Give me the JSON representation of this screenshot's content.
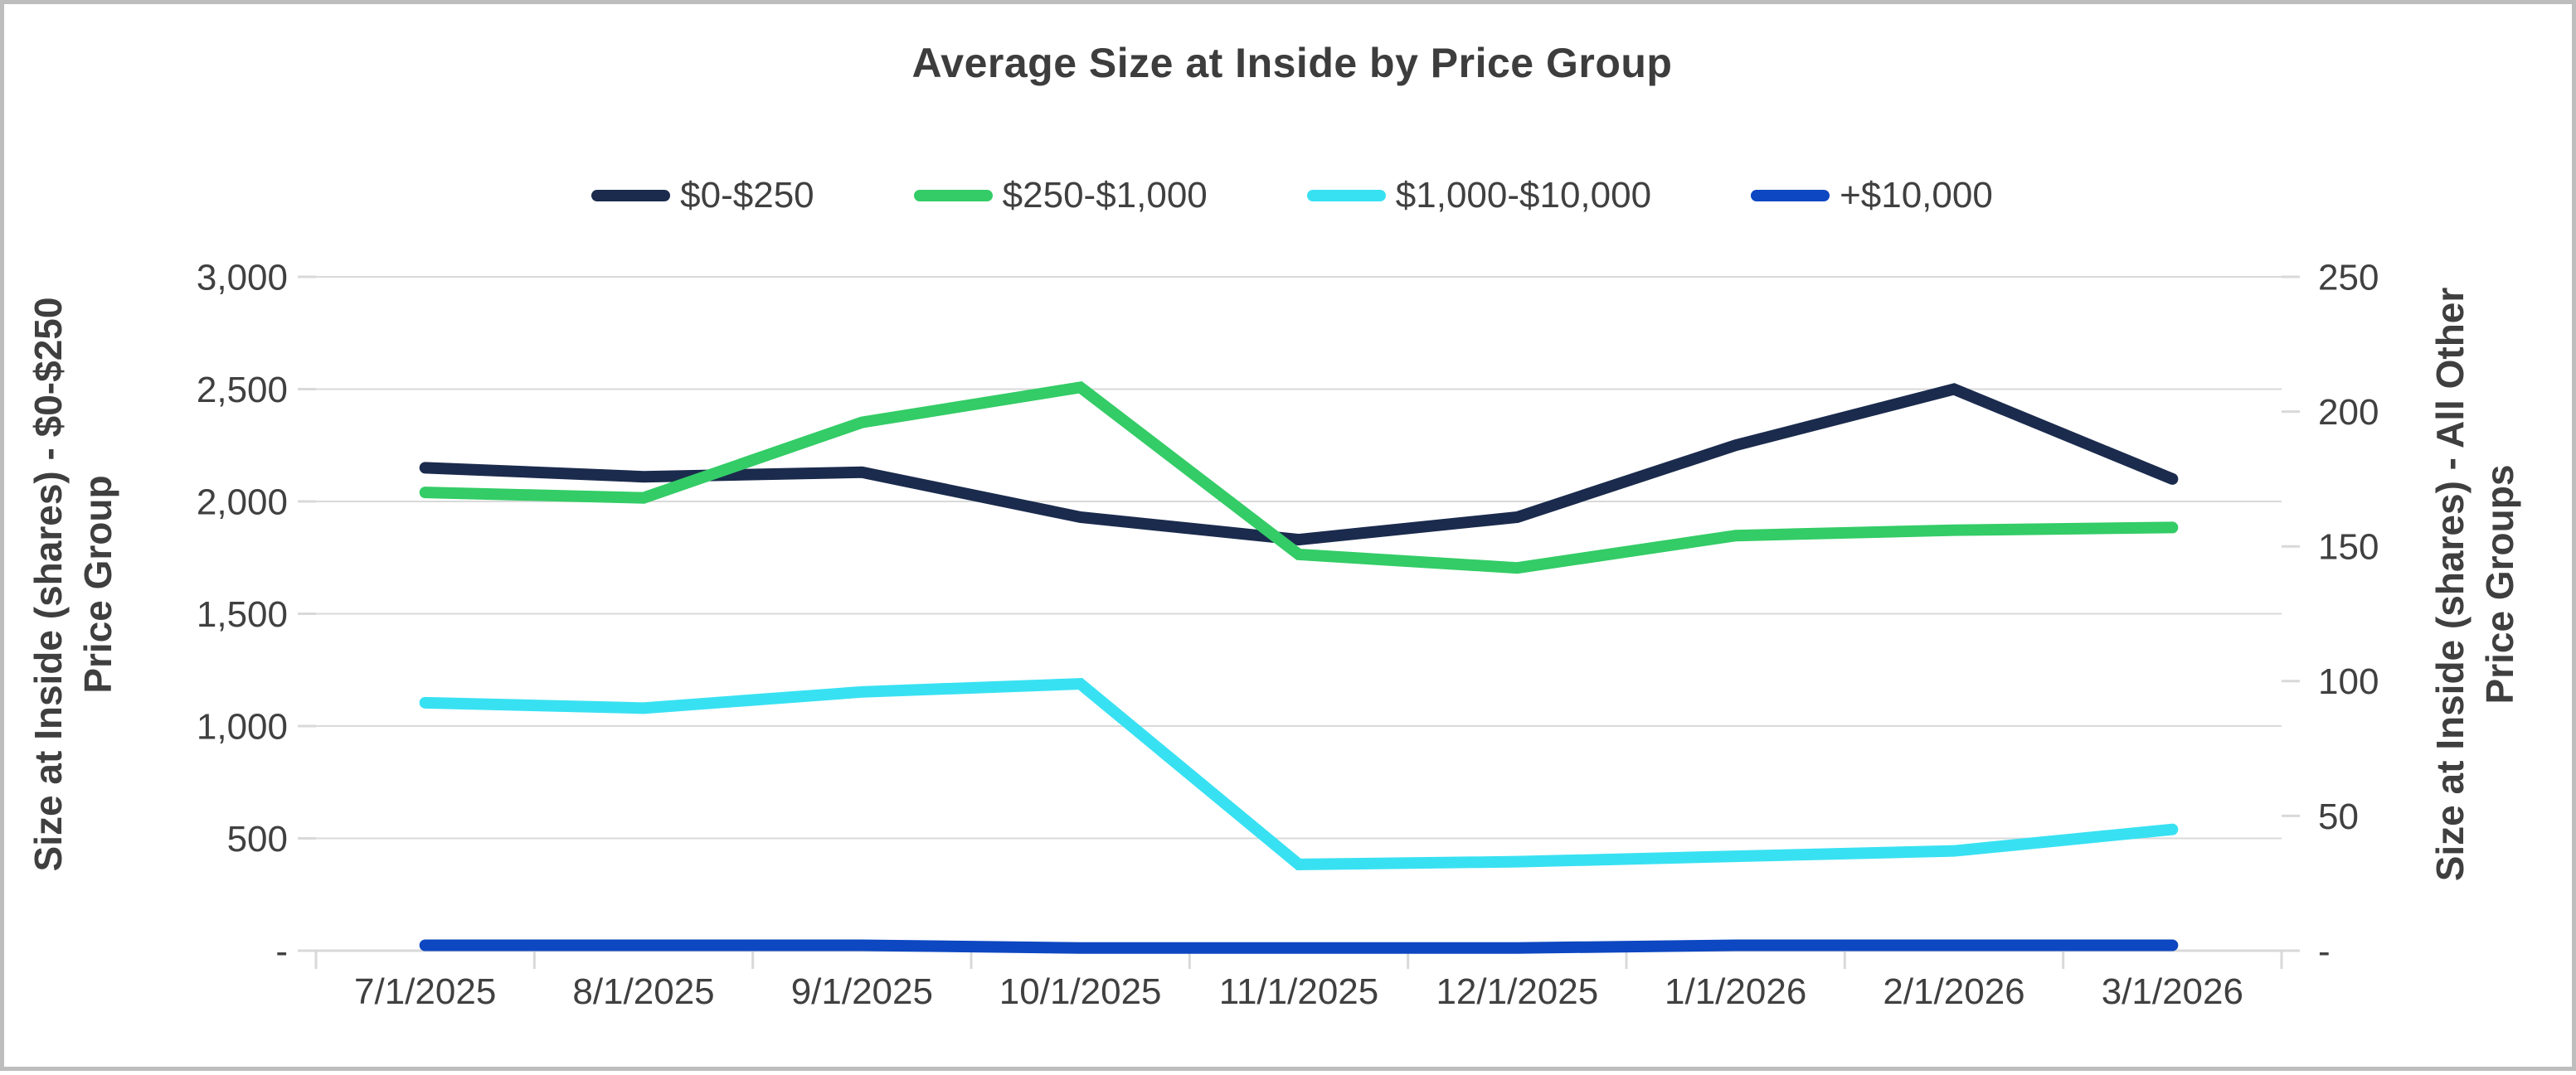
{
  "chart_data": {
    "type": "line",
    "title": "Average Size at Inside by Price Group",
    "categories": [
      "7/1/2025",
      "8/1/2025",
      "9/1/2025",
      "10/1/2025",
      "11/1/2025",
      "12/1/2025",
      "1/1/2026",
      "2/1/2026",
      "3/1/2026"
    ],
    "series": [
      {
        "name": "$0-$250",
        "axis": "left",
        "color": "#1B2B4D",
        "values": [
          2150,
          2110,
          2130,
          1930,
          1830,
          1930,
          2250,
          2500,
          2100
        ]
      },
      {
        "name": "$250-$1,000",
        "axis": "right",
        "color": "#33CC66",
        "values": [
          170,
          168,
          196,
          209,
          147,
          142,
          154,
          156,
          157
        ]
      },
      {
        "name": "$1,000-$10,000",
        "axis": "right",
        "color": "#38E1F2",
        "values": [
          92,
          90,
          96,
          99,
          32,
          33,
          35,
          37,
          45
        ]
      },
      {
        "name": "+$10,000",
        "axis": "right",
        "color": "#0D47C1",
        "values": [
          2,
          2,
          2,
          1,
          1,
          1,
          2,
          2,
          2
        ]
      }
    ],
    "left_axis": {
      "title_line1": "Size at Inside (shares) - $0-$250",
      "title_line2": "Price Group",
      "tick_labels": [
        "3,000",
        "2,500",
        "2,000",
        "1,500",
        "1,000",
        "500",
        "-"
      ],
      "min": 0,
      "max": 3000
    },
    "right_axis": {
      "title_line1": "Size at Inside (shares) - All Other",
      "title_line2": "Price Groups",
      "tick_labels": [
        "250",
        "200",
        "150",
        "100",
        "50",
        "-"
      ],
      "min": 0,
      "max": 250
    },
    "grid": true,
    "legend_position": "top",
    "colors": {
      "gridline": "#D9D9D9",
      "axis_line": "#D9D9D9",
      "text": "#404040",
      "title_text": "#3D3D3D",
      "frame_border": "#BDBDBD"
    }
  }
}
